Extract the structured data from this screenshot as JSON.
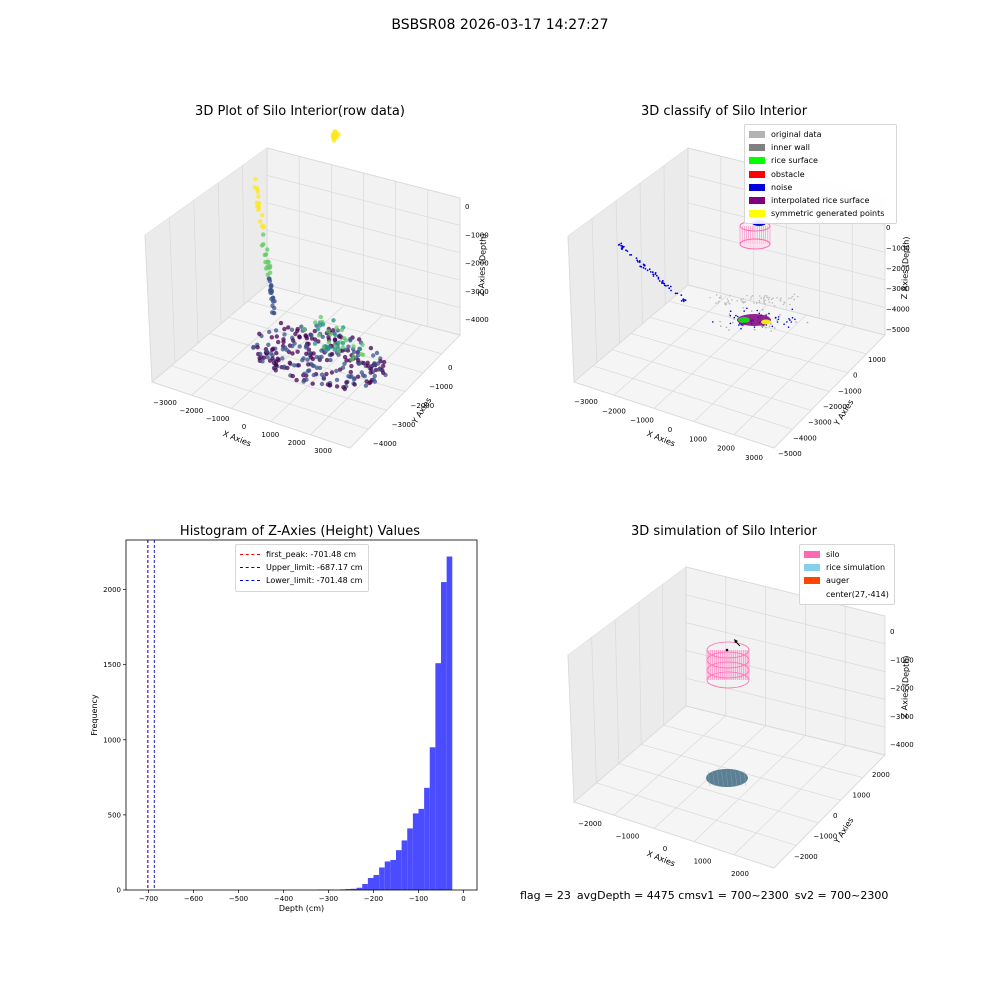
{
  "suptitle": "BSBSR08 2026-03-17 14:27:27",
  "status": {
    "flag": "flag = 23",
    "avg_depth": "avgDepth = 4475 cm",
    "sv1": "sv1 = 700~2300",
    "sv2": "sv2 = 700~2300"
  },
  "colors": {
    "hist_bar": "#4b4bff",
    "first_peak": "#ff0000",
    "limits": "#0000cc",
    "silo": "#ff69b4",
    "rice_simulation": "#87ceeb",
    "auger": "#ff4500",
    "pane": "#f2f2f2",
    "viridis": [
      "#440154",
      "#3b528b",
      "#21918c",
      "#5ec962",
      "#fde725"
    ]
  },
  "chart_data": [
    {
      "type": "scatter3d",
      "title": "3D Plot of Silo Interior(row data)",
      "xlabel": "X Axies",
      "ylabel": "Y Axies",
      "zlabel": "Z Axies (Depth)",
      "x_ticks": [
        "−3000",
        "−2000",
        "−1000",
        "0",
        "1000",
        "2000",
        "3000"
      ],
      "y_ticks": [
        "0",
        "−1000",
        "−2000",
        "−3000",
        "−4000"
      ],
      "z_ticks": [
        "0",
        "−1000",
        "−2000",
        "−3000",
        "−4000"
      ],
      "colormap": "viridis",
      "clusters": [
        {
          "x": -700,
          "y": 0,
          "z": -100,
          "spread": 120,
          "count": 30,
          "color_index": 4
        },
        {
          "x": -3000,
          "y": -600,
          "z": -2200,
          "spread": 350,
          "count": 55,
          "color_index": 3
        },
        {
          "x": 600,
          "y": -2200,
          "z": -4050,
          "spread": 900,
          "count": 260,
          "color_index": 0
        },
        {
          "x": 900,
          "y": -2000,
          "z": -3500,
          "spread": 900,
          "count": 40,
          "color_index": 2
        }
      ]
    },
    {
      "type": "scatter3d",
      "title": "3D classify of Silo Interior",
      "xlabel": "X Axies",
      "ylabel": "Y Axies",
      "zlabel": "Z Axies (Depth)",
      "x_ticks": [
        "−3000",
        "−2000",
        "−1000",
        "0",
        "1000",
        "2000",
        "3000"
      ],
      "y_ticks": [
        "1000",
        "0",
        "−1000",
        "−2000",
        "−3000",
        "−4000",
        "−5000"
      ],
      "z_ticks": [
        "0",
        "−1000",
        "−2000",
        "−3000",
        "−4000",
        "−5000"
      ],
      "legend": [
        {
          "label": "original data",
          "color": "#b3b3b3"
        },
        {
          "label": "inner wall",
          "color": "#808080"
        },
        {
          "label": "rice surface",
          "color": "#00ff00"
        },
        {
          "label": "obstacle",
          "color": "#ff0000"
        },
        {
          "label": "noise",
          "color": "#0000dd"
        },
        {
          "label": "interpolated rice surface",
          "color": "#800080"
        },
        {
          "label": "symmetric generated points",
          "color": "#ffff00"
        }
      ]
    },
    {
      "type": "bar",
      "title": "Histogram of Z-Axies (Height) Values",
      "xlabel": "Depth (cm)",
      "ylabel": "Frequency",
      "xlim": [
        -750,
        30
      ],
      "ylim": [
        0,
        2330
      ],
      "x_ticks": [
        -700,
        -600,
        -500,
        -400,
        -300,
        -200,
        -100,
        0
      ],
      "x_tick_labels": [
        "−700",
        "−600",
        "−500",
        "−400",
        "−300",
        "−200",
        "−100",
        "0"
      ],
      "y_ticks": [
        0,
        500,
        1000,
        1500,
        2000
      ],
      "y_tick_labels": [
        "0",
        "500",
        "1000",
        "1500",
        "2000"
      ],
      "bin_width": 12.5,
      "bins": [
        {
          "start": -325,
          "count": 3
        },
        {
          "start": -312.5,
          "count": 2
        },
        {
          "start": -300,
          "count": 2
        },
        {
          "start": -275,
          "count": 4
        },
        {
          "start": -262.5,
          "count": 6
        },
        {
          "start": -250,
          "count": 8
        },
        {
          "start": -237.5,
          "count": 15
        },
        {
          "start": -225,
          "count": 40
        },
        {
          "start": -212.5,
          "count": 80
        },
        {
          "start": -200,
          "count": 100
        },
        {
          "start": -187.5,
          "count": 150
        },
        {
          "start": -175,
          "count": 190
        },
        {
          "start": -162.5,
          "count": 200
        },
        {
          "start": -150,
          "count": 265
        },
        {
          "start": -137.5,
          "count": 330
        },
        {
          "start": -125,
          "count": 410
        },
        {
          "start": -112.5,
          "count": 510
        },
        {
          "start": -100,
          "count": 540
        },
        {
          "start": -87.5,
          "count": 680
        },
        {
          "start": -75,
          "count": 950
        },
        {
          "start": -62.5,
          "count": 1510
        },
        {
          "start": -50,
          "count": 2050
        },
        {
          "start": -37.5,
          "count": 2220
        }
      ],
      "lines": [
        {
          "name": "first_peak: -701.48 cm",
          "x": -701.48,
          "color": "#ff0000"
        },
        {
          "name": "Upper_limit: -687.17 cm",
          "x": -687.17,
          "color": "#0000cc"
        },
        {
          "name": "Lower_limit: -701.48 cm",
          "x": -701.48,
          "color": "#0000cc"
        }
      ],
      "legend_position": "top-center"
    },
    {
      "type": "surface3d",
      "title": "3D simulation of Silo Interior",
      "xlabel": "X Axies",
      "ylabel": "Y Axies",
      "zlabel": "Z Axies (Depth)",
      "x_ticks": [
        "−2000",
        "−1000",
        "0",
        "1000",
        "2000"
      ],
      "y_ticks": [
        "2000",
        "1000",
        "0",
        "−1000",
        "−2000"
      ],
      "z_ticks": [
        "0",
        "−1000",
        "−2000",
        "−3000",
        "−4000"
      ],
      "legend": [
        {
          "label": "silo",
          "color": "#ff69b4"
        },
        {
          "label": "rice simulation",
          "color": "#87ceeb"
        },
        {
          "label": "auger",
          "color": "#ff4500"
        },
        {
          "label": "center(27,-414)",
          "color": ""
        }
      ]
    }
  ]
}
